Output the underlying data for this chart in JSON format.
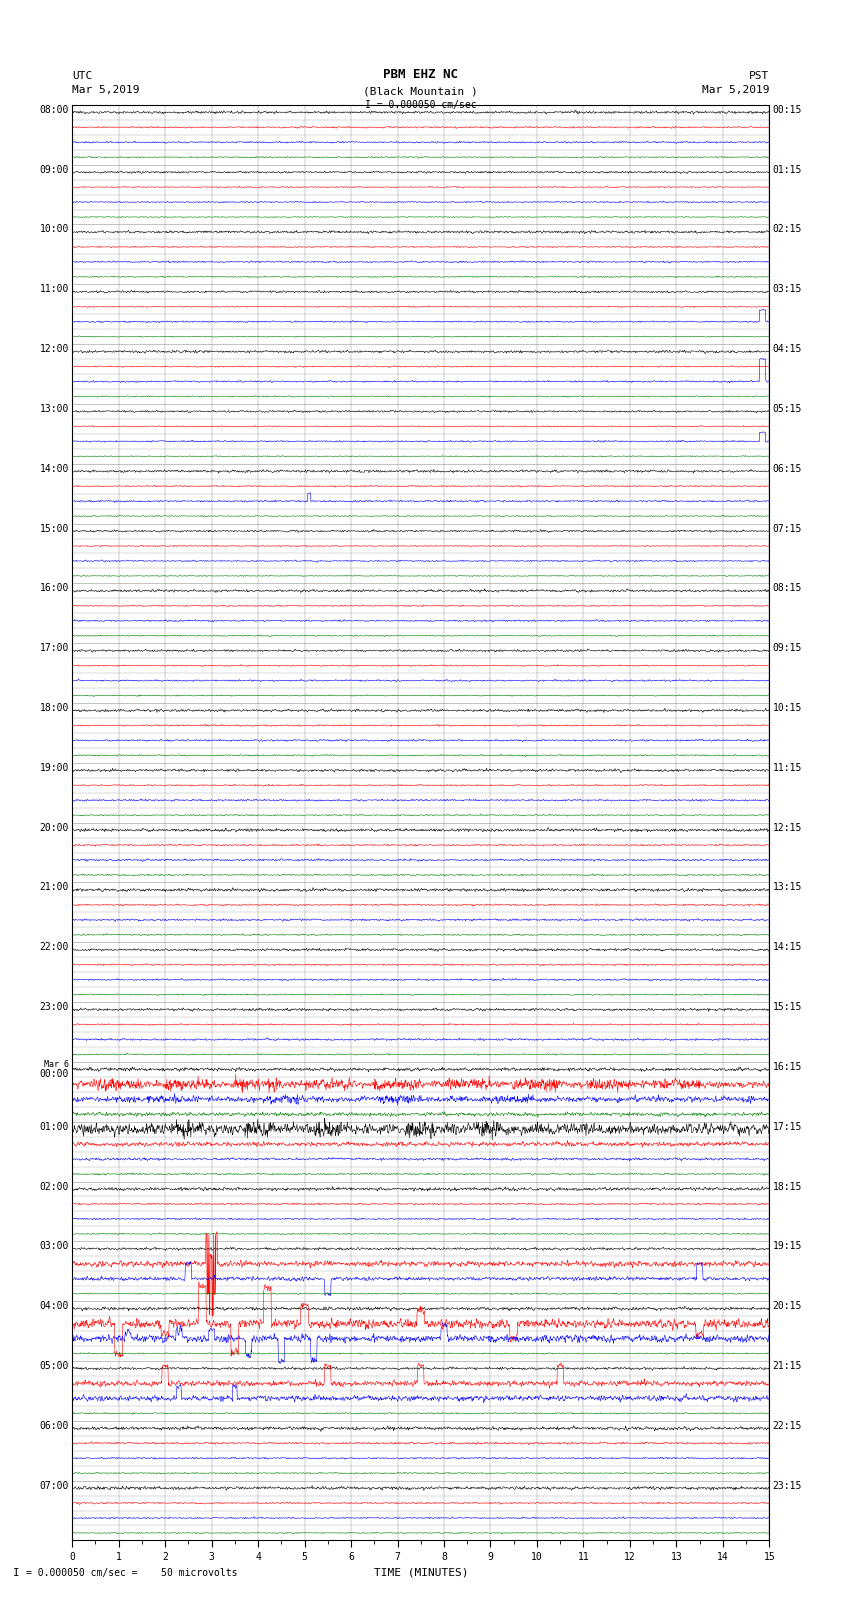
{
  "title_line1": "PBM EHZ NC",
  "title_line2": "(Black Mountain )",
  "title_line3": "I = 0.000050 cm/sec",
  "left_header_line1": "UTC",
  "left_header_line2": "Mar 5,2019",
  "right_header_line1": "PST",
  "right_header_line2": "Mar 5,2019",
  "footer_note": "= 0.000050 cm/sec =    50 microvolts",
  "xlabel": "TIME (MINUTES)",
  "xlim": [
    0,
    15
  ],
  "xticks": [
    0,
    1,
    2,
    3,
    4,
    5,
    6,
    7,
    8,
    9,
    10,
    11,
    12,
    13,
    14,
    15
  ],
  "left_times": [
    "08:00",
    "09:00",
    "10:00",
    "11:00",
    "12:00",
    "13:00",
    "14:00",
    "15:00",
    "16:00",
    "17:00",
    "18:00",
    "19:00",
    "20:00",
    "21:00",
    "22:00",
    "23:00",
    "Mar 6\n00:00",
    "01:00",
    "02:00",
    "03:00",
    "04:00",
    "05:00",
    "06:00",
    "07:00"
  ],
  "right_times": [
    "00:15",
    "01:15",
    "02:15",
    "03:15",
    "04:15",
    "05:15",
    "06:15",
    "07:15",
    "08:15",
    "09:15",
    "10:15",
    "11:15",
    "12:15",
    "13:15",
    "14:15",
    "15:15",
    "16:15",
    "17:15",
    "18:15",
    "19:15",
    "20:15",
    "21:15",
    "22:15",
    "23:15"
  ],
  "n_rows": 24,
  "traces_per_row": 4,
  "row_colors": [
    "black",
    "red",
    "blue",
    "green"
  ],
  "bg_color": "white",
  "grid_color": "#888888",
  "grid_linewidth": 0.3,
  "trace_linewidth": 0.4,
  "fig_width": 8.5,
  "fig_height": 16.13,
  "dpi": 100,
  "font_size_header": 8,
  "font_size_ticks": 7,
  "font_size_title": 9
}
